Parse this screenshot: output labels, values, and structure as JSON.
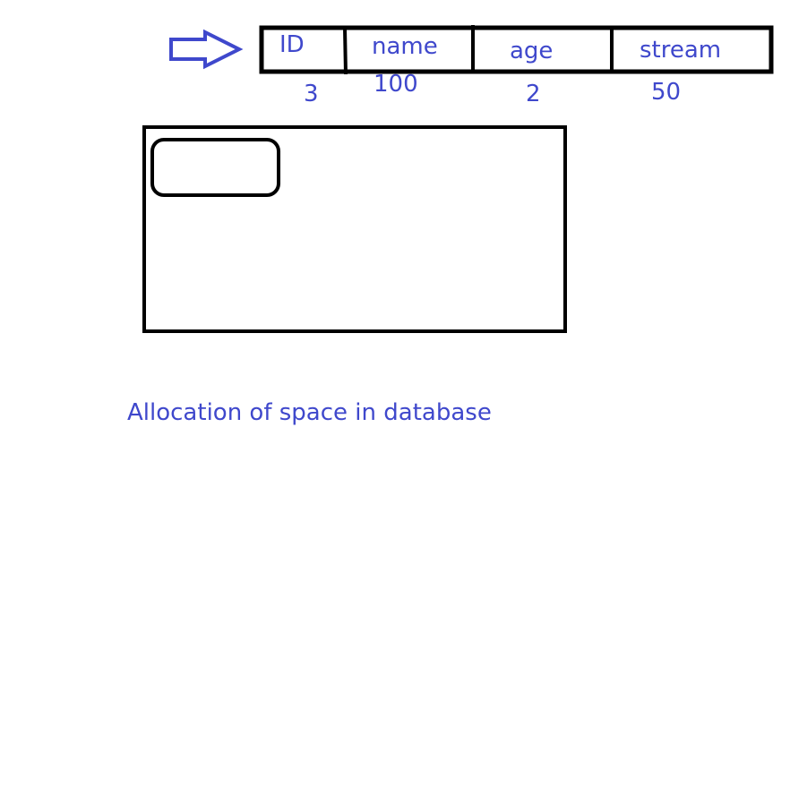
{
  "colors": {
    "ink": "#000000",
    "annotation": "#3f48cc"
  },
  "record": {
    "arrow_icon": "right-arrow-icon",
    "fields": [
      {
        "name": "ID",
        "size": "3"
      },
      {
        "name": "name",
        "size": "100"
      },
      {
        "name": "age",
        "size": "2"
      },
      {
        "name": "stream",
        "size": "50"
      }
    ]
  },
  "storage": {
    "outer_block": "database-space-box",
    "inner_slot": "allocated-record-slot"
  },
  "caption": "Allocation of space in database"
}
